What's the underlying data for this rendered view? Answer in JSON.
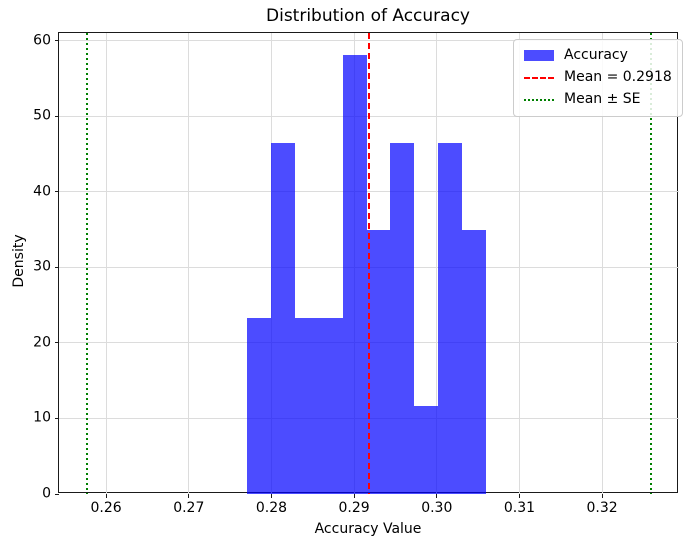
{
  "chart_data": {
    "type": "bar",
    "subtype": "histogram",
    "title": "Distribution of Accuracy",
    "xlabel": "Accuracy Value",
    "ylabel": "Density",
    "legend_position": "upper right",
    "grid": true,
    "grid_color": "#dcdcdc",
    "spine_color": "#1a1a1a",
    "bar_fill": "rgba(0,0,255,0.7)",
    "bar_color_hex": "#0000ff",
    "bar_alpha": 0.7,
    "bin_edges": [
      0.277,
      0.2799,
      0.2828,
      0.2857,
      0.2886,
      0.2915,
      0.2944,
      0.2973,
      0.3002,
      0.3031,
      0.306
    ],
    "densities": [
      23.25,
      46.5,
      23.25,
      23.25,
      58.12,
      34.87,
      46.5,
      11.62,
      46.5,
      34.87
    ],
    "mean_line": {
      "value": 0.2918,
      "color": "#ff0000",
      "style": "dashed",
      "label": "Mean = 0.2918"
    },
    "se_lines": {
      "values": [
        0.2577,
        0.3259
      ],
      "color": "#008000",
      "style": "dotted",
      "label": "Mean ± SE"
    },
    "xlim": [
      0.2543,
      0.3293
    ],
    "ylim": [
      0,
      61.0
    ],
    "xticks": [
      0.26,
      0.27,
      0.28,
      0.29,
      0.3,
      0.31,
      0.32
    ],
    "xtick_labels": [
      "0.26",
      "0.27",
      "0.28",
      "0.29",
      "0.30",
      "0.31",
      "0.32"
    ],
    "yticks": [
      0,
      10,
      20,
      30,
      40,
      50,
      60
    ],
    "ytick_labels": [
      "0",
      "10",
      "20",
      "30",
      "40",
      "50",
      "60"
    ],
    "legend": {
      "entries": [
        {
          "label": "Accuracy",
          "swatch": "patch"
        },
        {
          "label": "Mean = 0.2918",
          "swatch": "dashed-line"
        },
        {
          "label": "Mean ± SE",
          "swatch": "dotted-line"
        }
      ]
    }
  }
}
